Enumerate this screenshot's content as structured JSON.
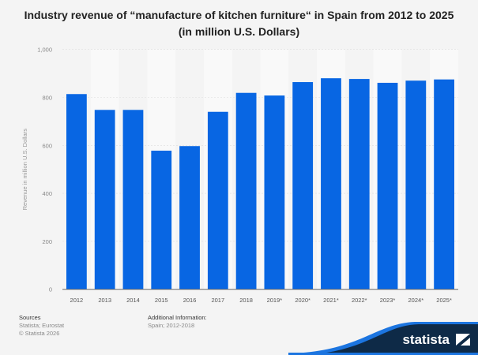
{
  "chart_data": {
    "type": "bar",
    "title": "Industry revenue of “manufacture of kitchen furniture“ in Spain from 2012 to 2025",
    "subtitle": "(in million U.S. Dollars)",
    "xlabel": "",
    "ylabel": "Revenue in million U.S. Dollars",
    "ylim": [
      0,
      1000
    ],
    "yticks": [
      "0",
      "200",
      "400",
      "600",
      "800",
      "1,000"
    ],
    "categories": [
      "2012",
      "2013",
      "2014",
      "2015",
      "2016",
      "2017",
      "2018",
      "2019*",
      "2020*",
      "2021*",
      "2022*",
      "2023*",
      "2024*",
      "2025*"
    ],
    "values": [
      814,
      748,
      748,
      578,
      597,
      740,
      819,
      808,
      864,
      880,
      877,
      861,
      870,
      875
    ],
    "grid": true,
    "bar_color": "#0866e3"
  },
  "footer": {
    "sources_label": "Sources",
    "sources": "Statista; Eurostat",
    "copyright": "© Statista 2026",
    "info_label": "Additional Information:",
    "info": "Spain; 2012-2018",
    "logo": "statista"
  }
}
